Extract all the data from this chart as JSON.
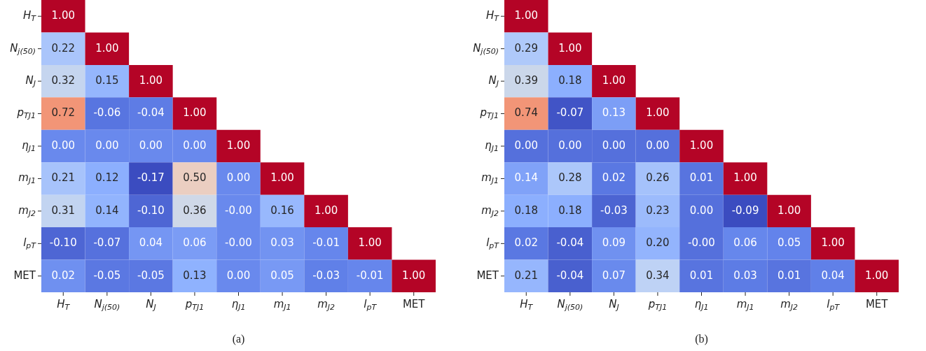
{
  "chart_data": [
    {
      "type": "heatmap",
      "categories": [
        "H$_{T}$",
        "N$_{j(50)}$",
        "N$_{J}$",
        "p$_{TJ1}$",
        "η$_{J1}$",
        "m$_{J1}$",
        "m$_{J2}$",
        "l$_{pT}$",
        "MET"
      ],
      "y_categories": [
        "H$_{T}$",
        "N$_{j(50)}$",
        "N$_{J}$",
        "p$_{TJ1}$",
        "η$_{J1}$",
        "m$_{J1}$",
        "m$_{J2}$",
        "l$_{pT}$",
        "MET"
      ],
      "cells": [
        [
          1.0,
          null,
          null,
          null,
          null,
          null,
          null,
          null,
          null
        ],
        [
          0.22,
          1.0,
          null,
          null,
          null,
          null,
          null,
          null,
          null
        ],
        [
          0.32,
          0.15,
          1.0,
          null,
          null,
          null,
          null,
          null,
          null
        ],
        [
          0.72,
          -0.06,
          -0.04,
          1.0,
          null,
          null,
          null,
          null,
          null
        ],
        [
          0.0,
          0.0,
          0.0,
          0.0,
          1.0,
          null,
          null,
          null,
          null
        ],
        [
          0.21,
          0.12,
          -0.17,
          0.5,
          0.0,
          1.0,
          null,
          null,
          null
        ],
        [
          0.31,
          0.14,
          -0.1,
          0.36,
          0.0,
          0.16,
          1.0,
          null,
          null
        ],
        [
          -0.1,
          -0.07,
          0.04,
          0.06,
          0.0,
          0.03,
          -0.01,
          1.0,
          null
        ],
        [
          0.02,
          -0.05,
          -0.05,
          0.13,
          0.0,
          0.05,
          -0.03,
          -0.01,
          1.0
        ]
      ],
      "cell_labels": [
        [
          "1.00",
          null,
          null,
          null,
          null,
          null,
          null,
          null,
          null
        ],
        [
          "0.22",
          "1.00",
          null,
          null,
          null,
          null,
          null,
          null,
          null
        ],
        [
          "0.32",
          "0.15",
          "1.00",
          null,
          null,
          null,
          null,
          null,
          null
        ],
        [
          "0.72",
          "-0.06",
          "-0.04",
          "1.00",
          null,
          null,
          null,
          null,
          null
        ],
        [
          "0.00",
          "0.00",
          "0.00",
          "0.00",
          "1.00",
          null,
          null,
          null,
          null
        ],
        [
          "0.21",
          "0.12",
          "-0.17",
          "0.50",
          "0.00",
          "1.00",
          null,
          null,
          null
        ],
        [
          "0.31",
          "0.14",
          "-0.10",
          "0.36",
          "-0.00",
          "0.16",
          "1.00",
          null,
          null
        ],
        [
          "-0.10",
          "-0.07",
          "0.04",
          "0.06",
          "-0.00",
          "0.03",
          "-0.01",
          "1.00",
          null
        ],
        [
          "0.02",
          "-0.05",
          "-0.05",
          "0.13",
          "0.00",
          "0.05",
          "-0.03",
          "-0.01",
          "1.00"
        ]
      ],
      "data_labels": true,
      "annotations": [
        "(a)"
      ]
    },
    {
      "type": "heatmap",
      "categories": [
        "H$_{T}$",
        "N$_{j(50)}$",
        "N$_{J}$",
        "p$_{TJ1}$",
        "η$_{J1}$",
        "m$_{J1}$",
        "m$_{J2}$",
        "l$_{pT}$",
        "MET"
      ],
      "y_categories": [
        "H$_{T}$",
        "N$_{j(50)}$",
        "N$_{J}$",
        "p$_{TJ1}$",
        "η$_{J1}$",
        "m$_{J1}$",
        "m$_{J2}$",
        "l$_{pT}$",
        "MET"
      ],
      "cells": [
        [
          1.0,
          null,
          null,
          null,
          null,
          null,
          null,
          null,
          null
        ],
        [
          0.29,
          1.0,
          null,
          null,
          null,
          null,
          null,
          null,
          null
        ],
        [
          0.39,
          0.18,
          1.0,
          null,
          null,
          null,
          null,
          null,
          null
        ],
        [
          0.74,
          -0.07,
          0.13,
          1.0,
          null,
          null,
          null,
          null,
          null
        ],
        [
          0.0,
          0.0,
          0.0,
          0.0,
          1.0,
          null,
          null,
          null,
          null
        ],
        [
          0.14,
          0.28,
          0.02,
          0.26,
          0.01,
          1.0,
          null,
          null,
          null
        ],
        [
          0.18,
          0.18,
          -0.03,
          0.23,
          0.0,
          -0.09,
          1.0,
          null,
          null
        ],
        [
          0.02,
          -0.04,
          0.09,
          0.2,
          0.0,
          0.06,
          0.05,
          1.0,
          null
        ],
        [
          0.21,
          -0.04,
          0.07,
          0.34,
          0.01,
          0.03,
          0.01,
          0.04,
          1.0
        ]
      ],
      "cell_labels": [
        [
          "1.00",
          null,
          null,
          null,
          null,
          null,
          null,
          null,
          null
        ],
        [
          "0.29",
          "1.00",
          null,
          null,
          null,
          null,
          null,
          null,
          null
        ],
        [
          "0.39",
          "0.18",
          "1.00",
          null,
          null,
          null,
          null,
          null,
          null
        ],
        [
          "0.74",
          "-0.07",
          "0.13",
          "1.00",
          null,
          null,
          null,
          null,
          null
        ],
        [
          "0.00",
          "0.00",
          "0.00",
          "0.00",
          "1.00",
          null,
          null,
          null,
          null
        ],
        [
          "0.14",
          "0.28",
          "0.02",
          "0.26",
          "0.01",
          "1.00",
          null,
          null,
          null
        ],
        [
          "0.18",
          "0.18",
          "-0.03",
          "0.23",
          "0.00",
          "-0.09",
          "1.00",
          null,
          null
        ],
        [
          "0.02",
          "-0.04",
          "0.09",
          "0.20",
          "-0.00",
          "0.06",
          "0.05",
          "1.00",
          null
        ],
        [
          "0.21",
          "-0.04",
          "0.07",
          "0.34",
          "0.01",
          "0.03",
          "0.01",
          "0.04",
          "1.00"
        ]
      ],
      "data_labels": true,
      "annotations": [
        "(b)"
      ]
    }
  ]
}
